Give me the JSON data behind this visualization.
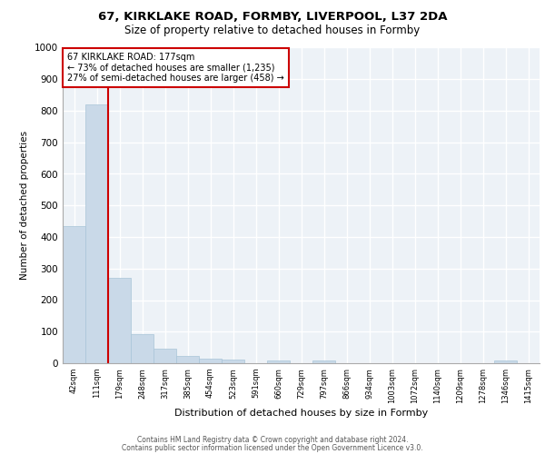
{
  "title1": "67, KIRKLAKE ROAD, FORMBY, LIVERPOOL, L37 2DA",
  "title2": "Size of property relative to detached houses in Formby",
  "xlabel": "Distribution of detached houses by size in Formby",
  "ylabel": "Number of detached properties",
  "bar_labels": [
    "42sqm",
    "111sqm",
    "179sqm",
    "248sqm",
    "317sqm",
    "385sqm",
    "454sqm",
    "523sqm",
    "591sqm",
    "660sqm",
    "729sqm",
    "797sqm",
    "866sqm",
    "934sqm",
    "1003sqm",
    "1072sqm",
    "1140sqm",
    "1209sqm",
    "1278sqm",
    "1346sqm",
    "1415sqm"
  ],
  "bar_values": [
    435,
    820,
    270,
    92,
    47,
    22,
    15,
    11,
    0,
    10,
    0,
    8,
    0,
    0,
    0,
    0,
    0,
    0,
    0,
    10,
    0
  ],
  "bar_color": "#c9d9e8",
  "bar_edge_color": "#a8c4d8",
  "subject_line_color": "#cc0000",
  "annotation_box_color": "#cc0000",
  "ylim": [
    0,
    1000
  ],
  "yticks": [
    0,
    100,
    200,
    300,
    400,
    500,
    600,
    700,
    800,
    900,
    1000
  ],
  "footer1": "Contains HM Land Registry data © Crown copyright and database right 2024.",
  "footer2": "Contains public sector information licensed under the Open Government Licence v3.0.",
  "plot_bg_color": "#edf2f7"
}
